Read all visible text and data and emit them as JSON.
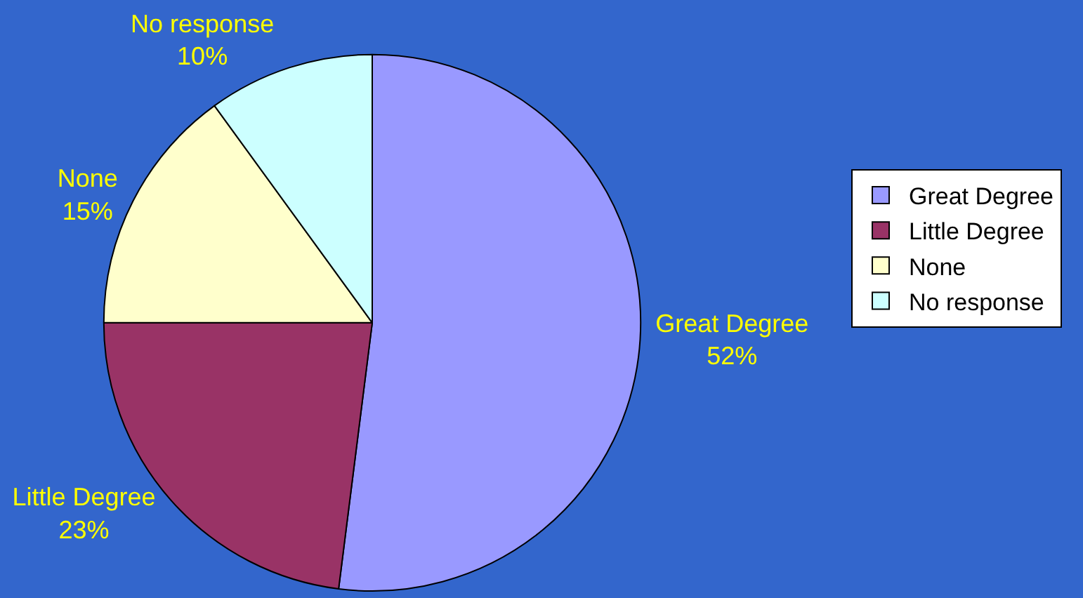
{
  "chart_data": {
    "type": "pie",
    "categories": [
      "Great Degree",
      "Little Degree",
      "None",
      "No response"
    ],
    "values": [
      52,
      23,
      15,
      10
    ],
    "colors": [
      "#9999ff",
      "#993366",
      "#ffffcc",
      "#ccffff"
    ],
    "value_labels": [
      "52%",
      "23%",
      "15%",
      "10%"
    ],
    "legend": "right"
  }
}
